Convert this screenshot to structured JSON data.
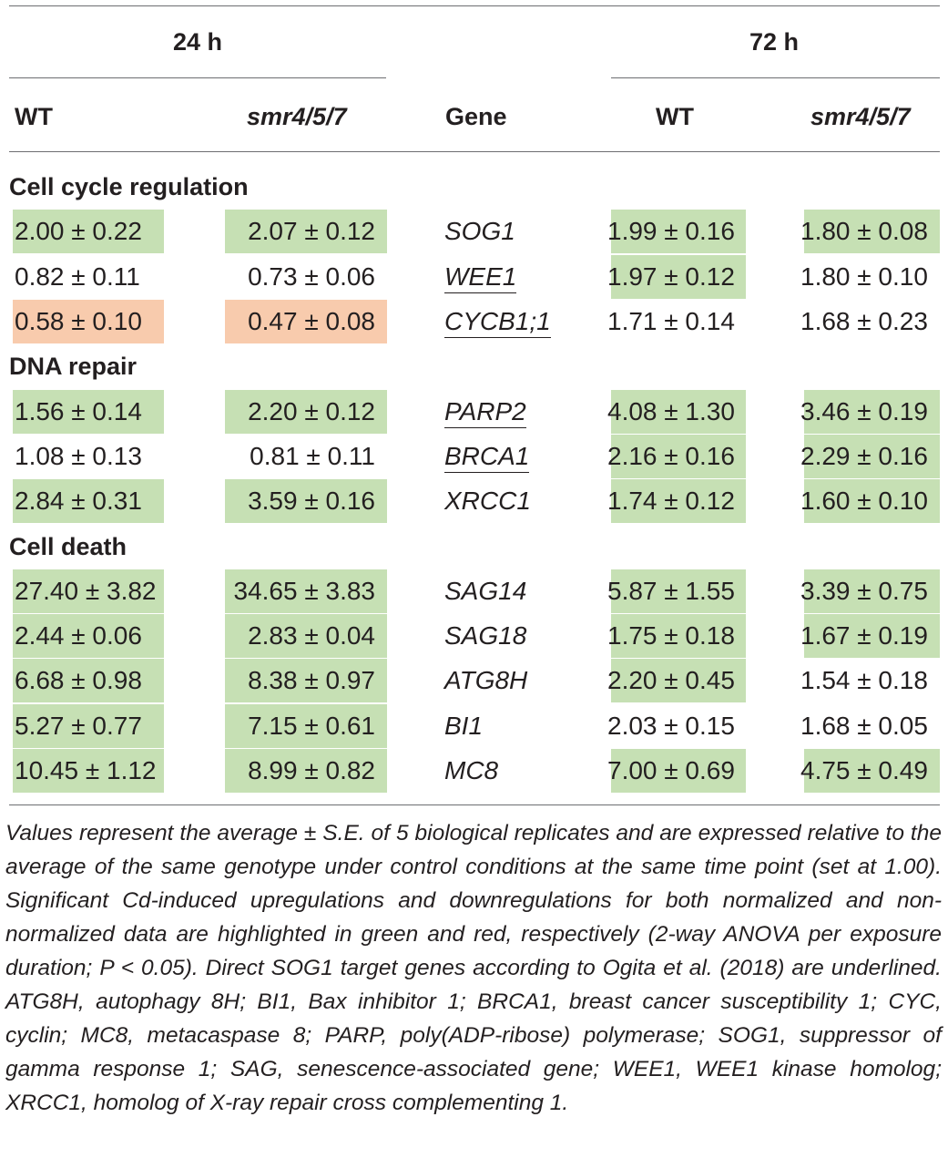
{
  "header": {
    "group_24h": "24 h",
    "group_72h": "72 h",
    "col_wt_24": "WT",
    "col_mut_24": "smr4/5/7",
    "col_gene": "Gene",
    "col_wt_72": "WT",
    "col_mut_72": "smr4/5/7"
  },
  "sections": [
    {
      "title": "Cell cycle regulation"
    },
    {
      "title": "DNA repair"
    },
    {
      "title": "Cell death"
    }
  ],
  "rows": [
    {
      "gene": "SOG1",
      "underlined": false,
      "wt24": "2.00 ± 0.22",
      "mut24": "2.07 ± 0.12",
      "wt72": "1.99 ± 0.16",
      "mut72": "1.80 ± 0.08",
      "hl": [
        "green",
        "green",
        "green",
        "green"
      ]
    },
    {
      "gene": "WEE1",
      "underlined": true,
      "wt24": "0.82 ± 0.11",
      "mut24": "0.73 ± 0.06",
      "wt72": "1.97 ± 0.12",
      "mut72": "1.80 ± 0.10",
      "hl": [
        "none",
        "none",
        "green",
        "none"
      ]
    },
    {
      "gene": "CYCB1;1",
      "underlined": true,
      "wt24": "0.58 ± 0.10",
      "mut24": "0.47 ± 0.08",
      "wt72": "1.71 ± 0.14",
      "mut72": "1.68 ± 0.23",
      "hl": [
        "red",
        "red",
        "none",
        "none"
      ]
    },
    {
      "gene": "PARP2",
      "underlined": true,
      "wt24": "1.56 ± 0.14",
      "mut24": "2.20 ± 0.12",
      "wt72": "4.08 ± 1.30",
      "mut72": "3.46 ± 0.19",
      "hl": [
        "green",
        "green",
        "green",
        "green"
      ]
    },
    {
      "gene": "BRCA1",
      "underlined": true,
      "wt24": "1.08 ± 0.13",
      "mut24": "0.81 ± 0.11",
      "wt72": "2.16 ± 0.16",
      "mut72": "2.29 ± 0.16",
      "hl": [
        "none",
        "none",
        "green",
        "green"
      ]
    },
    {
      "gene": "XRCC1",
      "underlined": false,
      "wt24": "2.84 ± 0.31",
      "mut24": "3.59 ± 0.16",
      "wt72": "1.74 ± 0.12",
      "mut72": "1.60 ± 0.10",
      "hl": [
        "green",
        "green",
        "green",
        "green"
      ]
    },
    {
      "gene": "SAG14",
      "underlined": false,
      "wt24": "27.40 ± 3.82",
      "mut24": "34.65 ± 3.83",
      "wt72": "5.87 ± 1.55",
      "mut72": "3.39 ± 0.75",
      "hl": [
        "green",
        "green",
        "green",
        "green"
      ]
    },
    {
      "gene": "SAG18",
      "underlined": false,
      "wt24": "2.44 ± 0.06",
      "mut24": "2.83 ± 0.04",
      "wt72": "1.75 ± 0.18",
      "mut72": "1.67 ± 0.19",
      "hl": [
        "green",
        "green",
        "green",
        "green"
      ]
    },
    {
      "gene": "ATG8H",
      "underlined": false,
      "wt24": "6.68 ± 0.98",
      "mut24": "8.38 ± 0.97",
      "wt72": "2.20 ± 0.45",
      "mut72": "1.54 ± 0.18",
      "hl": [
        "green",
        "green",
        "green",
        "none"
      ]
    },
    {
      "gene": "BI1",
      "underlined": false,
      "wt24": "5.27 ± 0.77",
      "mut24": "7.15 ± 0.61",
      "wt72": "2.03 ± 0.15",
      "mut72": "1.68 ± 0.05",
      "hl": [
        "green",
        "green",
        "none",
        "none"
      ]
    },
    {
      "gene": "MC8",
      "underlined": false,
      "wt24": "10.45 ± 1.12",
      "mut24": "8.99 ± 0.82",
      "wt72": "7.00 ± 0.69",
      "mut72": "4.75 ± 0.49",
      "hl": [
        "green",
        "green",
        "green",
        "green"
      ]
    }
  ],
  "colors": {
    "green": "#c6e0b4",
    "red": "#f8cbad",
    "text": "#231f20",
    "rule": "#6d6e71"
  },
  "footnote": "Values represent the average ± S.E. of 5 biological replicates and are expressed relative to the average of the same genotype under control conditions at the same time point (set at 1.00). Significant Cd-induced upregulations and downregulations for both normalized and non-normalized data are highlighted in green and red, respectively (2-way ANOVA per exposure duration; P < 0.05). Direct SOG1 target genes according to Ogita et al. (2018) are underlined. ATG8H, autophagy 8H; BI1, Bax inhibitor 1; BRCA1, breast cancer susceptibility 1; CYC, cyclin; MC8, metacaspase 8; PARP, poly(ADP-ribose) polymerase; SOG1, suppressor of gamma response 1; SAG, senescence-associated gene; WEE1, WEE1 kinase homolog; XRCC1, homolog of X-ray repair cross complementing 1."
}
